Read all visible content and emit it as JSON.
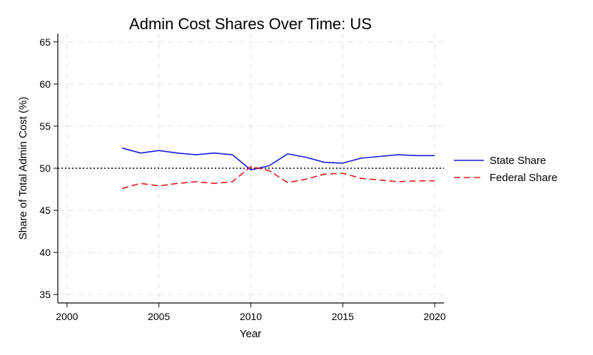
{
  "chart_data": {
    "type": "line",
    "title": "Admin Cost Shares Over Time: US",
    "xlabel": "Year",
    "ylabel": "Share of Total Admin Cost (%)",
    "xlim": [
      1999.5,
      2020.5
    ],
    "ylim": [
      34,
      66
    ],
    "x_ticks": [
      2000,
      2005,
      2010,
      2015,
      2020
    ],
    "y_ticks": [
      35,
      40,
      45,
      50,
      55,
      60,
      65
    ],
    "grid": true,
    "legend_position": "right",
    "reference_line": {
      "y": 50,
      "style": "dotted",
      "color": "#000000"
    },
    "x": [
      2003,
      2004,
      2005,
      2006,
      2007,
      2008,
      2009,
      2010,
      2011,
      2012,
      2013,
      2014,
      2015,
      2016,
      2017,
      2018,
      2019,
      2020
    ],
    "series": [
      {
        "name": "State Share",
        "color": "#1a1adc",
        "style": "solid",
        "values": [
          52.4,
          51.8,
          52.1,
          51.8,
          51.6,
          51.8,
          51.6,
          49.8,
          50.3,
          51.7,
          51.3,
          50.7,
          50.6,
          51.2,
          51.4,
          51.6,
          51.5,
          51.5
        ]
      },
      {
        "name": "Federal Share",
        "color": "#e8151b",
        "style": "dashed",
        "values": [
          47.6,
          48.2,
          47.9,
          48.2,
          48.4,
          48.2,
          48.4,
          50.2,
          49.7,
          48.3,
          48.7,
          49.3,
          49.4,
          48.8,
          48.6,
          48.4,
          48.5,
          48.5
        ]
      }
    ]
  }
}
